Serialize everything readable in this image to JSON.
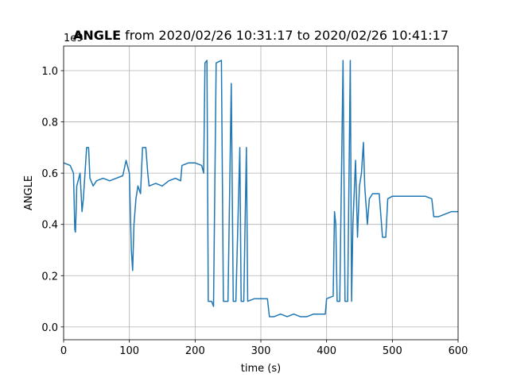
{
  "chart_data": {
    "type": "line",
    "title_bold": "ANGLE",
    "title": "from 2020/02/26 10:31:17 to 2020/02/26 10:41:17",
    "offset_label": "1e9",
    "xlabel": "time (s)",
    "ylabel": "ANGLE",
    "color": "#1f77b4",
    "grid": true,
    "xlim": [
      0,
      600
    ],
    "xticks": [
      0,
      100,
      200,
      300,
      400,
      500,
      600
    ],
    "ylim": [
      -0.05,
      1.096
    ],
    "yticks": [
      {
        "value": 0,
        "label": "0.0"
      },
      0.2,
      0.4,
      0.6,
      0.8,
      {
        "value": 1,
        "label": "1.0"
      }
    ],
    "x": [
      0,
      10,
      15,
      17,
      18,
      19,
      20,
      25,
      28,
      30,
      35,
      38,
      40,
      45,
      50,
      60,
      70,
      80,
      90,
      95,
      98,
      100,
      103,
      105,
      107,
      110,
      113,
      117,
      120,
      125,
      128,
      130,
      140,
      150,
      160,
      170,
      178,
      180,
      190,
      200,
      210,
      213,
      215,
      218,
      220,
      225,
      228,
      232,
      240,
      243,
      250,
      255,
      258,
      262,
      268,
      270,
      274,
      278,
      280,
      290,
      300,
      310,
      313,
      320,
      330,
      340,
      350,
      360,
      370,
      380,
      390,
      398,
      400,
      410,
      412,
      414,
      416,
      420,
      425,
      428,
      432,
      436,
      438,
      440,
      444,
      447,
      450,
      453,
      456,
      458,
      462,
      465,
      470,
      480,
      485,
      490,
      493,
      500,
      510,
      520,
      530,
      540,
      550,
      560,
      563,
      570,
      580,
      590,
      600
    ],
    "values": [
      0.64,
      0.63,
      0.6,
      0.38,
      0.37,
      0.45,
      0.55,
      0.6,
      0.45,
      0.5,
      0.7,
      0.7,
      0.58,
      0.55,
      0.57,
      0.58,
      0.57,
      0.58,
      0.59,
      0.65,
      0.62,
      0.6,
      0.3,
      0.22,
      0.4,
      0.5,
      0.55,
      0.52,
      0.7,
      0.7,
      0.6,
      0.55,
      0.56,
      0.55,
      0.57,
      0.58,
      0.57,
      0.63,
      0.64,
      0.64,
      0.63,
      0.6,
      1.03,
      1.04,
      0.1,
      0.1,
      0.08,
      1.03,
      1.04,
      0.1,
      0.1,
      0.95,
      0.1,
      0.1,
      0.7,
      0.1,
      0.1,
      0.7,
      0.1,
      0.11,
      0.11,
      0.11,
      0.04,
      0.04,
      0.05,
      0.04,
      0.05,
      0.04,
      0.04,
      0.05,
      0.05,
      0.05,
      0.11,
      0.12,
      0.45,
      0.4,
      0.1,
      0.1,
      1.04,
      0.1,
      0.1,
      1.04,
      0.1,
      0.4,
      0.65,
      0.35,
      0.55,
      0.6,
      0.72,
      0.55,
      0.4,
      0.5,
      0.52,
      0.52,
      0.35,
      0.35,
      0.5,
      0.51,
      0.51,
      0.51,
      0.51,
      0.51,
      0.51,
      0.5,
      0.43,
      0.43,
      0.44,
      0.45,
      0.45
    ]
  }
}
